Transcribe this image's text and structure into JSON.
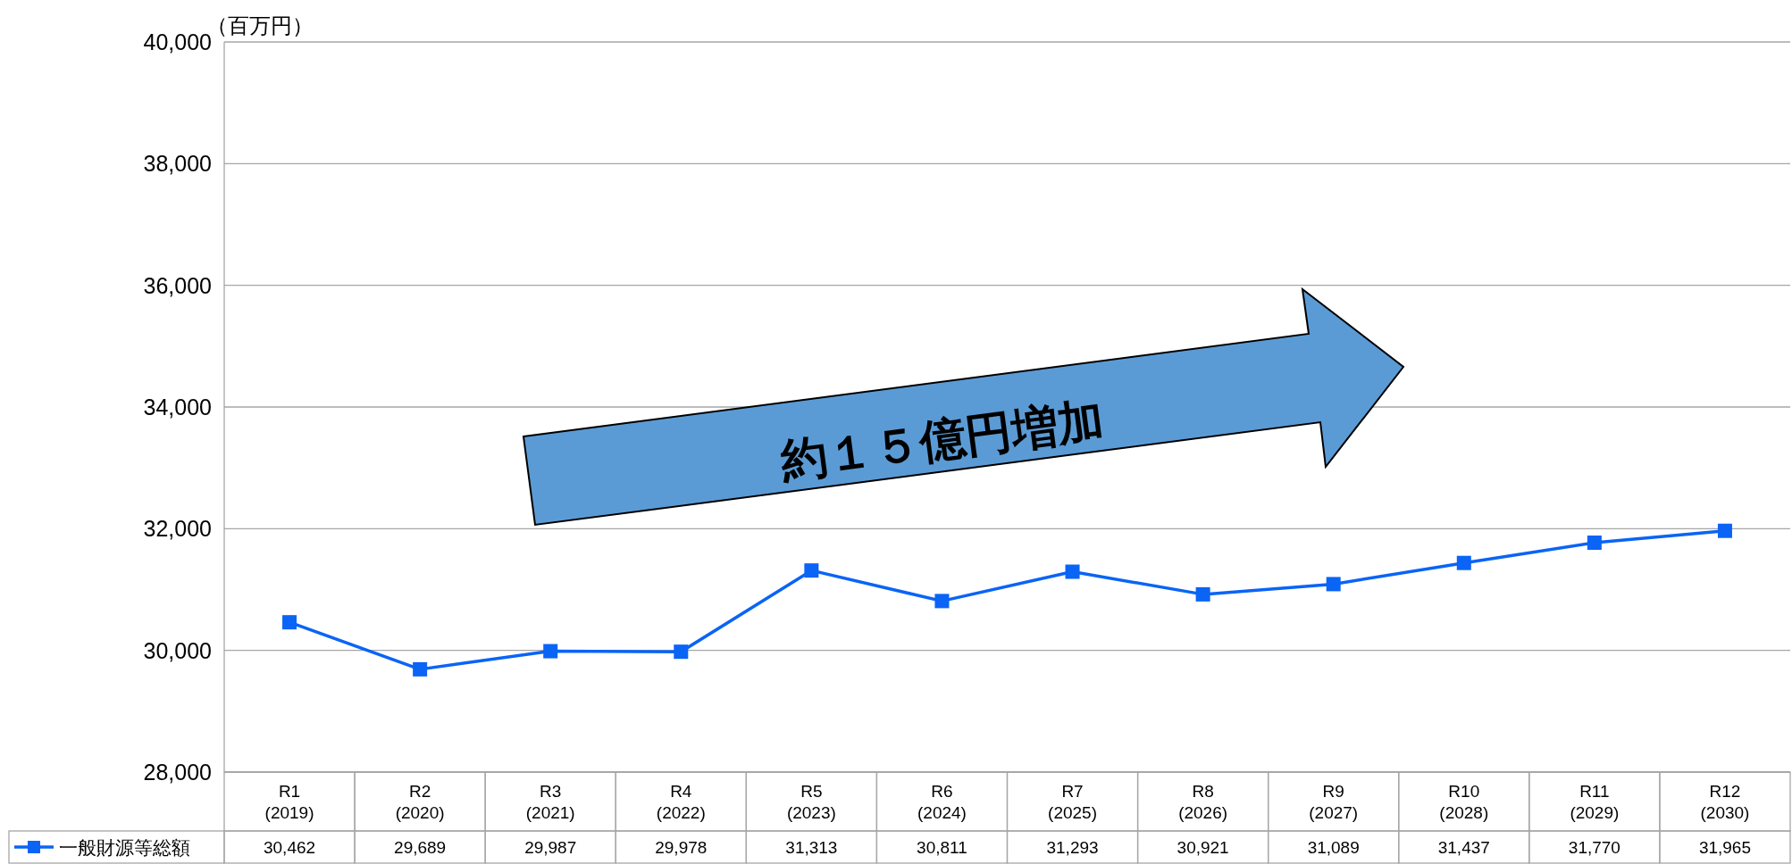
{
  "chart_data": {
    "type": "line",
    "ylabel": "（百万円）",
    "annotations": [
      "約１５億円増加"
    ],
    "categories": [
      "R1\n(2019)",
      "R2\n(2020)",
      "R3\n(2021)",
      "R4\n(2022)",
      "R5\n(2023)",
      "R6\n(2024)",
      "R7\n(2025)",
      "R8\n(2026)",
      "R9\n(2027)",
      "R10\n(2028)",
      "R11\n(2029)",
      "R12\n(2030)"
    ],
    "series": [
      {
        "name": "一般財源等総額",
        "color": "#0a64f5",
        "values": [
          30462,
          29689,
          29987,
          29978,
          31313,
          30811,
          31293,
          30921,
          31089,
          31437,
          31770,
          31965
        ],
        "value_labels": [
          "30,462",
          "29,689",
          "29,987",
          "29,978",
          "31,313",
          "30,811",
          "31,293",
          "30,921",
          "31,089",
          "31,437",
          "31,770",
          "31,965"
        ]
      }
    ],
    "ylim": [
      28000,
      40000
    ],
    "yticks": [
      {
        "value": 28000,
        "label": "28,000"
      },
      {
        "value": 30000,
        "label": "30,000"
      },
      {
        "value": 32000,
        "label": "32,000"
      },
      {
        "value": 34000,
        "label": "34,000"
      },
      {
        "value": 36000,
        "label": "36,000"
      },
      {
        "value": 38000,
        "label": "38,000"
      },
      {
        "value": 40000,
        "label": "40,000"
      }
    ],
    "grid": "y",
    "marker": "square",
    "line_style": "solid",
    "legend": "bottom"
  }
}
